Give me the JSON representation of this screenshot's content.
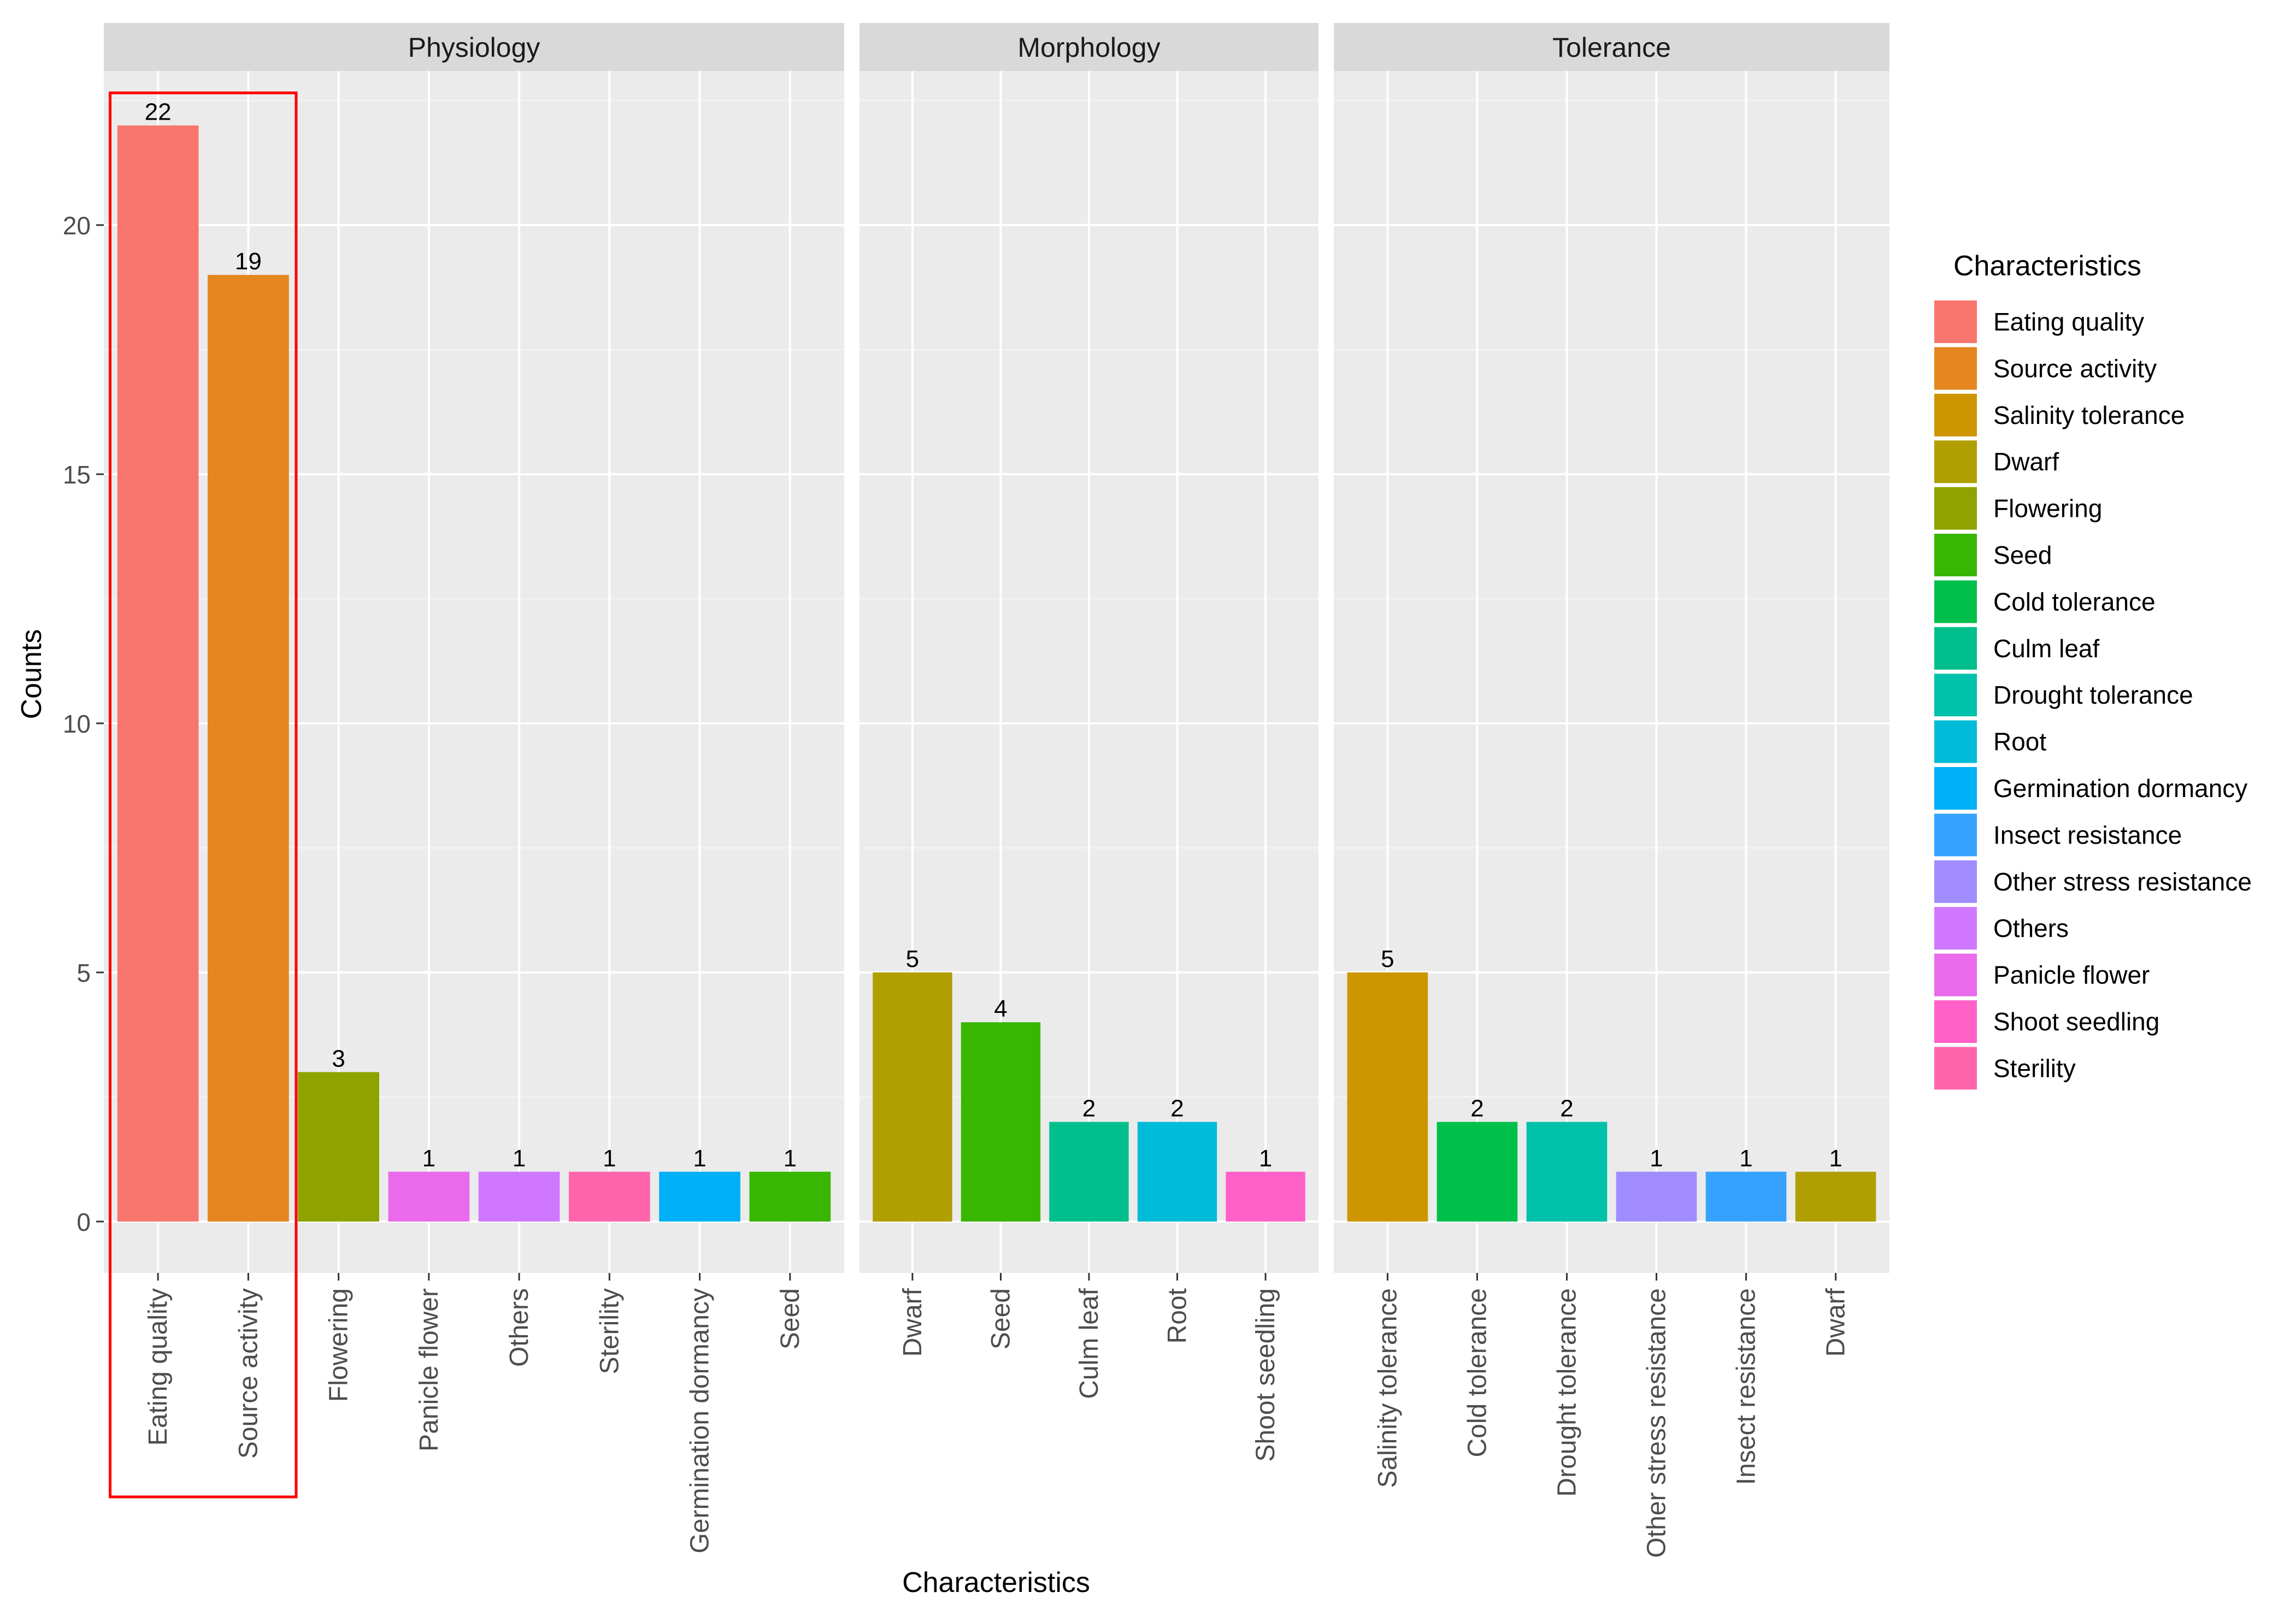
{
  "chart_data": {
    "type": "bar",
    "xlabel": "Characteristics",
    "ylabel": "Counts",
    "ylim": [
      0,
      23
    ],
    "yticks": [
      0,
      5,
      10,
      15,
      20
    ],
    "grid": true,
    "facets": [
      {
        "name": "Physiology",
        "categories": [
          "Eating quality",
          "Source activity",
          "Flowering",
          "Panicle flower",
          "Others",
          "Sterility",
          "Germination dormancy",
          "Seed"
        ],
        "values": [
          22,
          19,
          3,
          1,
          1,
          1,
          1,
          1
        ],
        "colors": [
          "#F8766D",
          "#E58620",
          "#8EA300",
          "#EA6AEC",
          "#CF78FF",
          "#FF65AC",
          "#00B0F6",
          "#39B600"
        ]
      },
      {
        "name": "Morphology",
        "categories": [
          "Dwarf",
          "Seed",
          "Culm leaf",
          "Root",
          "Shoot seedling"
        ],
        "values": [
          5,
          4,
          2,
          2,
          1
        ],
        "colors": [
          "#B09F00",
          "#39B600",
          "#00BF8C",
          "#00BCD8",
          "#FF61C9"
        ]
      },
      {
        "name": "Tolerance",
        "categories": [
          "Salinity tolerance",
          "Cold tolerance",
          "Drought tolerance",
          "Other stress resistance",
          "Insect resistance",
          "Dwarf"
        ],
        "values": [
          5,
          2,
          2,
          1,
          1,
          1
        ],
        "colors": [
          "#CD9600",
          "#00BF4B",
          "#00C1A9",
          "#A08CFF",
          "#35A2FF",
          "#B09F00"
        ]
      }
    ],
    "highlight": {
      "facet": "Physiology",
      "categories": [
        "Eating quality",
        "Source activity"
      ],
      "color": "#FF0000"
    },
    "legend": {
      "title": "Characteristics",
      "position": "right",
      "items": [
        {
          "label": "Eating quality",
          "color": "#F8766D"
        },
        {
          "label": "Source activity",
          "color": "#E58620"
        },
        {
          "label": "Salinity tolerance",
          "color": "#CD9600"
        },
        {
          "label": "Dwarf",
          "color": "#B09F00"
        },
        {
          "label": "Flowering",
          "color": "#8EA300"
        },
        {
          "label": "Seed",
          "color": "#39B600"
        },
        {
          "label": "Cold tolerance",
          "color": "#00BF4B"
        },
        {
          "label": "Culm leaf",
          "color": "#00BF8C"
        },
        {
          "label": "Drought tolerance",
          "color": "#00C1A9"
        },
        {
          "label": "Root",
          "color": "#00BCD8"
        },
        {
          "label": "Germination dormancy",
          "color": "#00B0F6"
        },
        {
          "label": "Insect resistance",
          "color": "#35A2FF"
        },
        {
          "label": "Other stress resistance",
          "color": "#A08CFF"
        },
        {
          "label": "Others",
          "color": "#CF78FF"
        },
        {
          "label": "Panicle flower",
          "color": "#EA6AEC"
        },
        {
          "label": "Shoot seedling",
          "color": "#FF61C9"
        },
        {
          "label": "Sterility",
          "color": "#FF65AC"
        }
      ]
    }
  }
}
